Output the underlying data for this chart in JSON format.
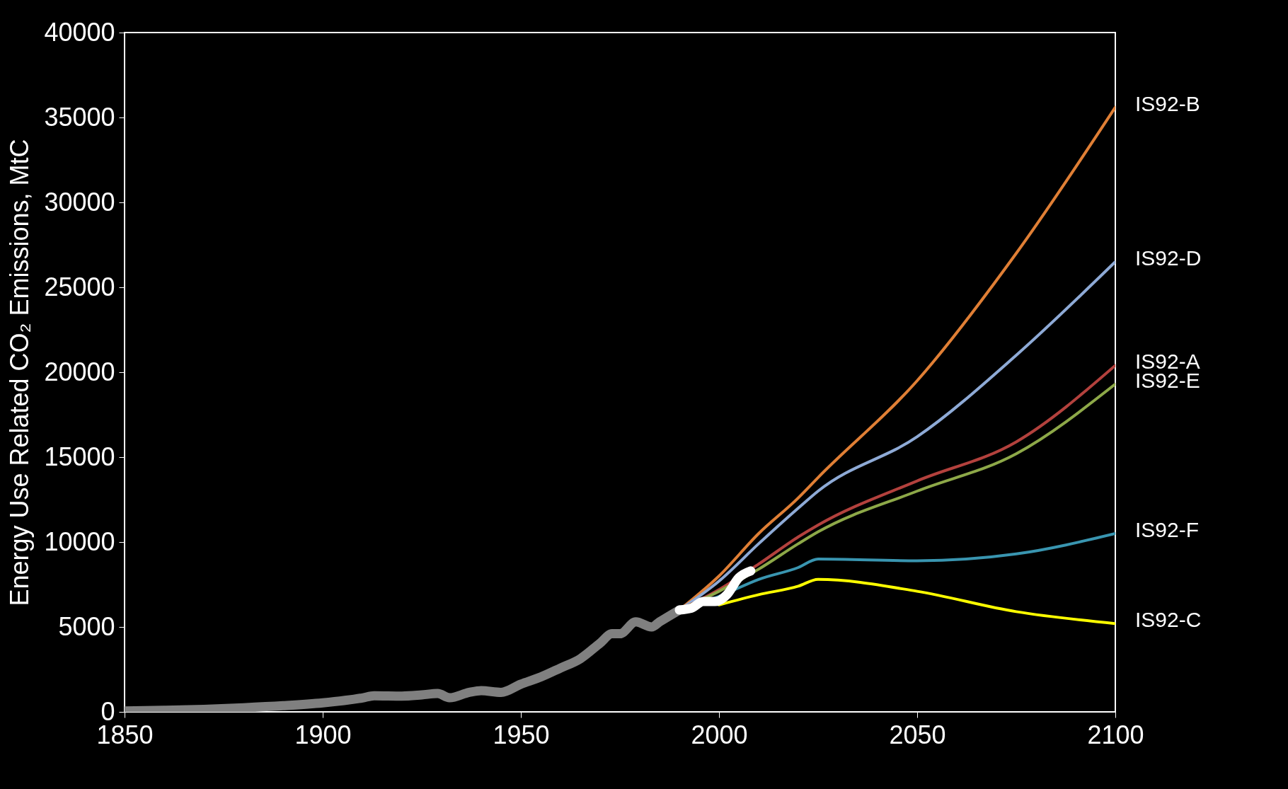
{
  "chart_data": {
    "type": "line",
    "ylabel": "Energy Use Related CO₂ Emissions, MtC",
    "xlim": [
      1850,
      2100
    ],
    "xticks": [
      1850,
      1900,
      1950,
      2000,
      2050,
      2100
    ],
    "ylim": [
      0,
      40000
    ],
    "yticks": [
      0,
      5000,
      10000,
      15000,
      20000,
      25000,
      30000,
      35000,
      40000
    ],
    "grid": false,
    "series": [
      {
        "name": "IS92-B",
        "color": "#e07f35",
        "x": [
          1990,
          2000,
          2010,
          2020,
          2025,
          2050,
          2075,
          2100
        ],
        "values": [
          6000,
          8000,
          10500,
          12600,
          13800,
          19500,
          27000,
          35600
        ]
      },
      {
        "name": "IS92-D",
        "color": "#8eaad6",
        "x": [
          1990,
          2000,
          2010,
          2020,
          2025,
          2050,
          2075,
          2100
        ],
        "values": [
          6000,
          7700,
          9900,
          12000,
          13000,
          16200,
          21000,
          26500
        ]
      },
      {
        "name": "IS92-A",
        "color": "#b3413d",
        "x": [
          1990,
          2000,
          2010,
          2020,
          2025,
          2050,
          2075,
          2100
        ],
        "values": [
          6000,
          7200,
          8700,
          10300,
          11000,
          13600,
          15900,
          20400
        ]
      },
      {
        "name": "IS92-E",
        "color": "#8da848",
        "x": [
          1990,
          2000,
          2010,
          2020,
          2025,
          2050,
          2075,
          2100
        ],
        "values": [
          6000,
          7100,
          8400,
          9900,
          10600,
          13000,
          15200,
          19300
        ]
      },
      {
        "name": "IS92-F",
        "color": "#3995b0",
        "x": [
          1990,
          2000,
          2010,
          2020,
          2025,
          2050,
          2075,
          2100
        ],
        "values": [
          6000,
          6800,
          7800,
          8500,
          9000,
          8900,
          9300,
          10500
        ]
      },
      {
        "name": "IS92-C",
        "color": "#ffff00",
        "x": [
          2000,
          2010,
          2020,
          2025,
          2050,
          2075,
          2100
        ],
        "values": [
          6300,
          6900,
          7400,
          7800,
          7100,
          5900,
          5200
        ]
      },
      {
        "color": "#808080",
        "x": [
          1850,
          1860,
          1870,
          1880,
          1890,
          1900,
          1910,
          1913,
          1920,
          1925,
          1929,
          1932,
          1937,
          1940,
          1945,
          1950,
          1955,
          1960,
          1965,
          1970,
          1973,
          1975,
          1979,
          1983,
          1985,
          1990
        ],
        "values": [
          50,
          90,
          150,
          240,
          360,
          530,
          820,
          950,
          930,
          1000,
          1080,
          830,
          1150,
          1250,
          1150,
          1630,
          2050,
          2580,
          3130,
          4050,
          4600,
          4600,
          5300,
          5000,
          5300,
          6000
        ]
      },
      {
        "color": "#ffffff",
        "x": [
          1990,
          1993,
          1996,
          1999,
          2002,
          2005,
          2008
        ],
        "values": [
          6000,
          6100,
          6500,
          6500,
          6900,
          7900,
          8300
        ]
      }
    ]
  }
}
